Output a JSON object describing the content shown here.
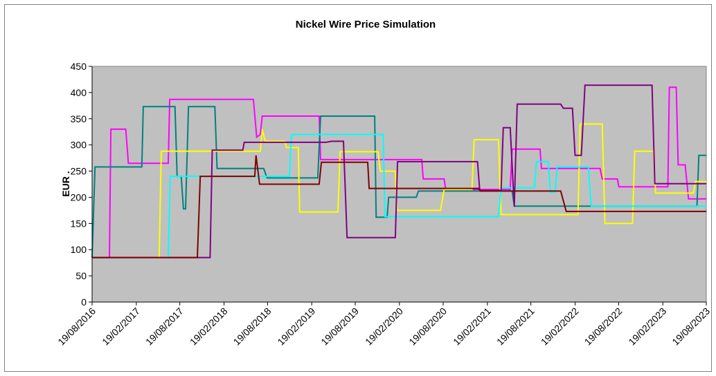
{
  "chart_data": {
    "type": "line",
    "title": "Nickel Wire Price Simulation",
    "y_label": "EUR .",
    "xlim": [
      "2016-08-19",
      "2023-08-19"
    ],
    "xticks": [
      {
        "value": "2016-08-19",
        "label": "19/08/2016"
      },
      {
        "value": "2017-02-19",
        "label": "19/02/2017"
      },
      {
        "value": "2017-08-19",
        "label": "19/08/2017"
      },
      {
        "value": "2018-02-19",
        "label": "19/02/2018"
      },
      {
        "value": "2018-08-19",
        "label": "19/08/2018"
      },
      {
        "value": "2019-02-19",
        "label": "19/02/2019"
      },
      {
        "value": "2019-08-19",
        "label": "19/08/2019"
      },
      {
        "value": "2020-02-19",
        "label": "19/02/2020"
      },
      {
        "value": "2020-08-19",
        "label": "19/08/2020"
      },
      {
        "value": "2021-02-19",
        "label": "19/02/2021"
      },
      {
        "value": "2021-08-19",
        "label": "19/08/2021"
      },
      {
        "value": "2022-02-19",
        "label": "19/02/2022"
      },
      {
        "value": "2022-08-19",
        "label": "19/08/2022"
      },
      {
        "value": "2023-02-19",
        "label": "19/02/2023"
      },
      {
        "value": "2023-08-19",
        "label": "19/08/2023"
      }
    ],
    "ylim": [
      0,
      450
    ],
    "yticks": [
      0,
      50,
      100,
      150,
      200,
      250,
      300,
      350,
      400,
      450
    ],
    "grid": false,
    "plot_background": "#c0c0c0",
    "series": [
      {
        "color": "#ff00ff",
        "x": [
          "2016-08-19",
          "2016-10-30",
          "2016-11-05",
          "2017-01-06",
          "2017-01-17",
          "2017-07-02",
          "2017-07-08",
          "2018-06-21",
          "2018-07-05",
          "2018-07-20",
          "2018-07-28",
          "2019-03-22",
          "2019-03-28",
          "2020-05-22",
          "2020-05-28",
          "2020-08-23",
          "2020-08-29",
          "2021-05-25",
          "2021-06-02",
          "2021-09-26",
          "2021-10-02",
          "2022-06-03",
          "2022-06-12",
          "2022-08-14",
          "2022-08-20",
          "2023-03-12",
          "2023-03-18",
          "2023-04-16",
          "2023-04-24",
          "2023-05-23",
          "2023-06-06",
          "2023-08-19"
        ],
        "values": [
          85,
          85,
          330,
          330,
          265,
          265,
          387,
          387,
          315,
          320,
          355,
          355,
          272,
          272,
          235,
          235,
          215,
          215,
          292,
          292,
          255,
          255,
          235,
          235,
          220,
          220,
          410,
          410,
          262,
          262,
          197,
          197
        ]
      },
      {
        "color": "#008080",
        "x": [
          "2016-08-19",
          "2016-08-31",
          "2017-03-14",
          "2017-03-20",
          "2017-07-30",
          "2017-08-08",
          "2017-08-25",
          "2017-09-03",
          "2017-09-12",
          "2017-09-24",
          "2018-01-12",
          "2018-01-21",
          "2018-08-03",
          "2018-08-17",
          "2019-03-16",
          "2019-03-28",
          "2019-11-08",
          "2019-11-14",
          "2019-12-30",
          "2020-01-05",
          "2020-04-29",
          "2020-05-08",
          "2021-06-02",
          "2021-06-11",
          "2023-07-11",
          "2023-07-19",
          "2023-08-19"
        ],
        "values": [
          85,
          258,
          258,
          373,
          373,
          240,
          240,
          178,
          178,
          373,
          373,
          255,
          255,
          237,
          237,
          355,
          355,
          162,
          162,
          200,
          200,
          212,
          212,
          183,
          183,
          280,
          280
        ]
      },
      {
        "color": "#ffff00",
        "x": [
          "2016-08-19",
          "2017-05-25",
          "2017-06-03",
          "2018-07-20",
          "2018-07-28",
          "2018-08-09",
          "2018-10-29",
          "2018-11-06",
          "2018-12-25",
          "2018-12-31",
          "2019-06-08",
          "2019-06-17",
          "2019-11-22",
          "2019-12-01",
          "2020-02-02",
          "2020-02-08",
          "2020-08-08",
          "2020-08-23",
          "2020-12-17",
          "2020-12-26",
          "2021-04-06",
          "2021-04-17",
          "2022-03-03",
          "2022-03-12",
          "2022-06-12",
          "2022-06-23",
          "2022-10-16",
          "2022-10-25",
          "2023-01-11",
          "2023-01-20",
          "2023-06-26",
          "2023-07-05",
          "2023-08-19"
        ],
        "values": [
          85,
          85,
          288,
          288,
          330,
          307,
          307,
          295,
          295,
          172,
          172,
          287,
          287,
          250,
          250,
          175,
          175,
          215,
          215,
          310,
          310,
          167,
          167,
          340,
          340,
          150,
          150,
          288,
          288,
          208,
          208,
          230,
          230
        ]
      },
      {
        "color": "#00ffff",
        "x": [
          "2016-08-19",
          "2017-07-02",
          "2017-07-10",
          "2018-11-18",
          "2018-11-27",
          "2019-12-13",
          "2019-12-21",
          "2021-04-06",
          "2021-04-17",
          "2021-09-03",
          "2021-09-11",
          "2021-10-30",
          "2021-11-08",
          "2021-11-28",
          "2021-12-06",
          "2022-04-15",
          "2022-04-27",
          "2023-08-19"
        ],
        "values": [
          85,
          85,
          240,
          240,
          320,
          320,
          163,
          163,
          218,
          218,
          268,
          268,
          210,
          210,
          258,
          258,
          183,
          183
        ]
      },
      {
        "color": "#800080",
        "x": [
          "2016-08-19",
          "2017-12-23",
          "2018-01-01",
          "2018-05-08",
          "2018-05-14",
          "2019-04-20",
          "2019-05-13",
          "2019-07-01",
          "2019-07-16",
          "2020-02-02",
          "2020-02-11",
          "2021-01-09",
          "2021-01-18",
          "2021-04-17",
          "2021-04-26",
          "2021-05-25",
          "2021-06-11",
          "2021-06-23",
          "2021-12-21",
          "2022-01-01",
          "2022-02-08",
          "2022-02-19",
          "2022-03-17",
          "2022-04-01",
          "2023-01-05",
          "2023-01-17",
          "2023-08-19"
        ],
        "values": [
          85,
          85,
          290,
          290,
          305,
          305,
          307,
          307,
          123,
          123,
          268,
          268,
          213,
          213,
          333,
          333,
          182,
          378,
          378,
          370,
          370,
          280,
          280,
          414,
          414,
          226,
          226
        ]
      },
      {
        "color": "#800000",
        "x": [
          "2016-08-19",
          "2017-10-31",
          "2017-11-12",
          "2018-06-27",
          "2018-07-02",
          "2018-07-17",
          "2019-03-22",
          "2019-03-31",
          "2019-10-10",
          "2019-10-16",
          "2021-01-15",
          "2021-01-21",
          "2021-12-21",
          "2022-01-13",
          "2023-08-19"
        ],
        "values": [
          85,
          85,
          240,
          240,
          280,
          225,
          225,
          267,
          267,
          217,
          217,
          212,
          212,
          173,
          173
        ]
      }
    ]
  }
}
